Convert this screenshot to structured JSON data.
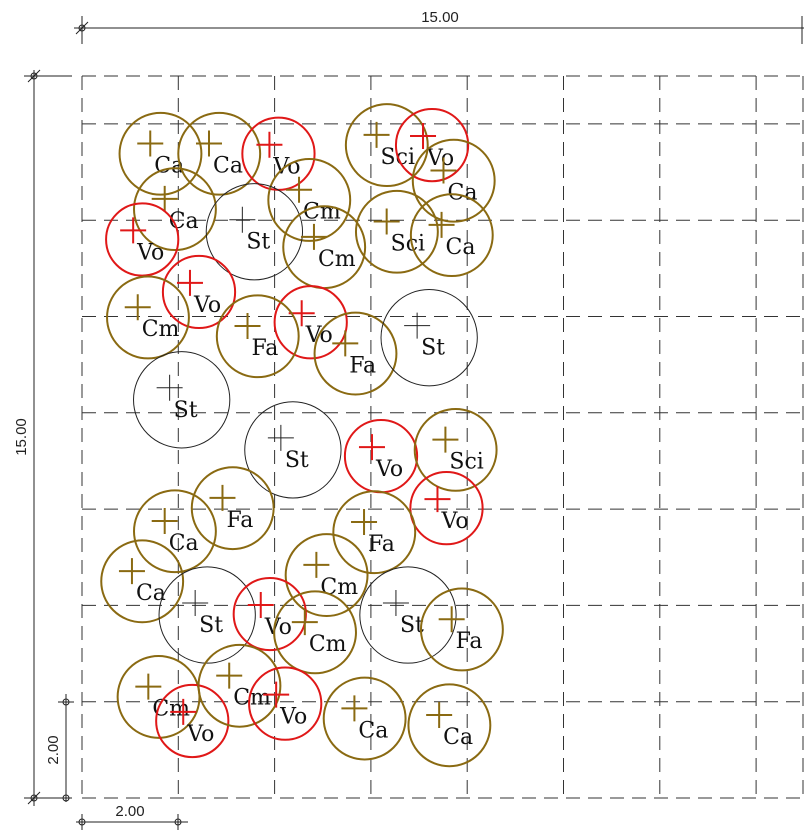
{
  "dimensions": {
    "top": "15.00",
    "left": "15.00",
    "small_vertical": "2.00",
    "small_horizontal": "2.00"
  },
  "colors": {
    "Ca": "#8a6a12",
    "Cm": "#8a6a12",
    "Fa": "#8a6a12",
    "Sci": "#8a6a12",
    "Vo": "#e01818",
    "St": "#222222",
    "grid": "#333333"
  },
  "plants": [
    {
      "code": "Ca",
      "x": 1.63,
      "y": 13.38,
      "r": 0.85
    },
    {
      "code": "Ca",
      "x": 2.85,
      "y": 13.38,
      "r": 0.85
    },
    {
      "code": "Vo",
      "x": 4.08,
      "y": 13.38,
      "r": 0.75
    },
    {
      "code": "Sci",
      "x": 6.33,
      "y": 13.56,
      "r": 0.85
    },
    {
      "code": "Vo",
      "x": 7.27,
      "y": 13.56,
      "r": 0.75
    },
    {
      "code": "Ca",
      "x": 1.93,
      "y": 12.23,
      "r": 0.85
    },
    {
      "code": "Cm",
      "x": 4.72,
      "y": 12.42,
      "r": 0.85
    },
    {
      "code": "Ca",
      "x": 7.72,
      "y": 12.82,
      "r": 0.85
    },
    {
      "code": "Vo",
      "x": 1.25,
      "y": 11.6,
      "r": 0.75
    },
    {
      "code": "St",
      "x": 3.58,
      "y": 11.76,
      "r": 1.0
    },
    {
      "code": "Cm",
      "x": 5.03,
      "y": 11.44,
      "r": 0.85
    },
    {
      "code": "Sci",
      "x": 6.54,
      "y": 11.76,
      "r": 0.85
    },
    {
      "code": "Ca",
      "x": 7.68,
      "y": 11.69,
      "r": 0.85
    },
    {
      "code": "Vo",
      "x": 2.43,
      "y": 10.51,
      "r": 0.75
    },
    {
      "code": "Cm",
      "x": 1.37,
      "y": 9.98,
      "r": 0.85
    },
    {
      "code": "Vo",
      "x": 4.75,
      "y": 9.88,
      "r": 0.75
    },
    {
      "code": "Fa",
      "x": 3.65,
      "y": 9.59,
      "r": 0.85
    },
    {
      "code": "Fa",
      "x": 5.68,
      "y": 9.23,
      "r": 0.85
    },
    {
      "code": "St",
      "x": 7.21,
      "y": 9.56,
      "r": 1.0
    },
    {
      "code": "St",
      "x": 2.07,
      "y": 8.27,
      "r": 1.0
    },
    {
      "code": "St",
      "x": 4.38,
      "y": 7.23,
      "r": 1.0
    },
    {
      "code": "Vo",
      "x": 6.21,
      "y": 7.1,
      "r": 0.75
    },
    {
      "code": "Sci",
      "x": 7.76,
      "y": 7.23,
      "r": 0.85
    },
    {
      "code": "Fa",
      "x": 3.13,
      "y": 6.02,
      "r": 0.85
    },
    {
      "code": "Vo",
      "x": 7.57,
      "y": 6.02,
      "r": 0.75
    },
    {
      "code": "Ca",
      "x": 1.93,
      "y": 5.54,
      "r": 0.85
    },
    {
      "code": "Fa",
      "x": 6.07,
      "y": 5.52,
      "r": 0.85
    },
    {
      "code": "Ca",
      "x": 1.25,
      "y": 4.5,
      "r": 0.85
    },
    {
      "code": "Cm",
      "x": 5.08,
      "y": 4.63,
      "r": 0.85
    },
    {
      "code": "St",
      "x": 2.6,
      "y": 3.8,
      "r": 1.0
    },
    {
      "code": "Vo",
      "x": 3.9,
      "y": 3.82,
      "r": 0.75
    },
    {
      "code": "St",
      "x": 6.77,
      "y": 3.8,
      "r": 1.0
    },
    {
      "code": "Cm",
      "x": 4.84,
      "y": 3.44,
      "r": 0.85
    },
    {
      "code": "Fa",
      "x": 7.89,
      "y": 3.5,
      "r": 0.85
    },
    {
      "code": "Cm",
      "x": 1.59,
      "y": 2.1,
      "r": 0.85
    },
    {
      "code": "Vo",
      "x": 2.29,
      "y": 1.6,
      "r": 0.75
    },
    {
      "code": "Cm",
      "x": 3.27,
      "y": 2.33,
      "r": 0.85
    },
    {
      "code": "Vo",
      "x": 4.22,
      "y": 1.96,
      "r": 0.75
    },
    {
      "code": "Ca",
      "x": 5.87,
      "y": 1.65,
      "r": 0.85
    },
    {
      "code": "Ca",
      "x": 7.63,
      "y": 1.51,
      "r": 0.85
    }
  ]
}
